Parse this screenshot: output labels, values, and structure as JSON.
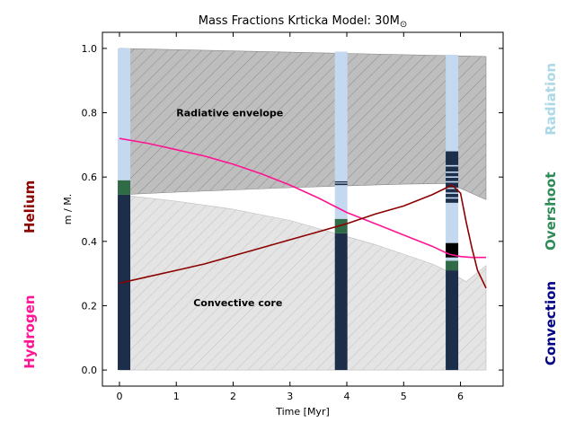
{
  "chart_data": {
    "type": "area",
    "title": "Mass Fractions Krticka Model: 30M",
    "title_symbol": "⊙",
    "xlabel": "Time [Myr]",
    "ylabel": "m / M.",
    "xlim": [
      -0.3,
      6.75
    ],
    "ylim": [
      -0.05,
      1.05
    ],
    "xticks": [
      0,
      1,
      2,
      3,
      4,
      5,
      6
    ],
    "yticks": [
      0.0,
      0.2,
      0.4,
      0.6,
      0.8,
      1.0
    ],
    "grid": false,
    "annotations": [
      {
        "text": "Radiative envelope",
        "x": 1.0,
        "y": 0.8
      },
      {
        "text": "Convective core",
        "x": 1.3,
        "y": 0.21
      }
    ],
    "legend_labels": {
      "left": [
        {
          "text": "Helium",
          "color": "#8b0000",
          "y_frac": 0.48
        },
        {
          "text": "Hydrogen",
          "color": "#ff1493",
          "y_frac": 0.77
        }
      ],
      "right": [
        {
          "text": "Radiation",
          "color": "#add8e6",
          "y_frac": 0.23
        },
        {
          "text": "Overshoot",
          "color": "#2e8b57",
          "y_frac": 0.49
        },
        {
          "text": "Convection",
          "color": "#000080",
          "y_frac": 0.75
        }
      ]
    },
    "regions": {
      "radiative_envelope_top": {
        "x": [
          0.0,
          6.45
        ],
        "y": [
          1.0,
          0.975
        ]
      },
      "radiative_envelope_bottom": {
        "x": [
          0.0,
          1.0,
          2.0,
          3.0,
          4.0,
          5.0,
          5.8,
          6.45
        ],
        "y": [
          0.545,
          0.553,
          0.56,
          0.567,
          0.573,
          0.578,
          0.58,
          0.53
        ]
      },
      "convective_core_top": {
        "x": [
          0.0,
          1.0,
          2.0,
          3.0,
          3.5,
          4.0,
          4.5,
          5.0,
          5.5,
          5.8,
          6.1,
          6.45
        ],
        "y": [
          0.545,
          0.525,
          0.5,
          0.465,
          0.44,
          0.415,
          0.39,
          0.36,
          0.33,
          0.305,
          0.275,
          0.325
        ]
      },
      "convective_core_bottom": {
        "x": [
          0.0,
          6.45
        ],
        "y": [
          0.0,
          0.0
        ]
      }
    },
    "series": [
      {
        "name": "Hydrogen",
        "color": "#ff1493",
        "x": [
          0.0,
          0.5,
          1.0,
          1.5,
          2.0,
          2.5,
          3.0,
          3.5,
          4.0,
          4.5,
          5.0,
          5.5,
          5.8,
          6.0,
          6.2,
          6.45
        ],
        "y": [
          0.72,
          0.705,
          0.685,
          0.665,
          0.64,
          0.61,
          0.575,
          0.535,
          0.49,
          0.455,
          0.42,
          0.385,
          0.36,
          0.353,
          0.35,
          0.35
        ]
      },
      {
        "name": "Helium",
        "color": "#8b0000",
        "x": [
          0.0,
          0.5,
          1.0,
          1.5,
          2.0,
          2.5,
          3.0,
          3.5,
          4.0,
          4.5,
          5.0,
          5.5,
          5.85,
          6.0,
          6.1,
          6.2,
          6.3,
          6.45
        ],
        "y": [
          0.27,
          0.29,
          0.31,
          0.33,
          0.355,
          0.38,
          0.405,
          0.43,
          0.455,
          0.485,
          0.51,
          0.545,
          0.575,
          0.55,
          0.46,
          0.38,
          0.31,
          0.255
        ]
      }
    ],
    "profiles": [
      {
        "time": 0.08,
        "segments": [
          {
            "from": 0.0,
            "to": 0.545,
            "kind": "convection",
            "color": "#1c2e4a"
          },
          {
            "from": 0.545,
            "to": 0.59,
            "kind": "overshoot",
            "color": "#2e6b46"
          },
          {
            "from": 0.59,
            "to": 1.0,
            "kind": "radiation",
            "color": "#c4d8f0"
          }
        ]
      },
      {
        "time": 3.9,
        "segments": [
          {
            "from": 0.0,
            "to": 0.425,
            "kind": "convection",
            "color": "#1c2e4a"
          },
          {
            "from": 0.425,
            "to": 0.47,
            "kind": "overshoot",
            "color": "#2e6b46"
          },
          {
            "from": 0.47,
            "to": 0.575,
            "kind": "radiation",
            "color": "#c4d8f0"
          },
          {
            "from": 0.575,
            "to": 0.58,
            "kind": "convection",
            "color": "#1c2e4a"
          },
          {
            "from": 0.58,
            "to": 0.583,
            "kind": "radiation",
            "color": "#c4d8f0"
          },
          {
            "from": 0.583,
            "to": 0.587,
            "kind": "convection",
            "color": "#1c2e4a"
          },
          {
            "from": 0.587,
            "to": 0.99,
            "kind": "radiation",
            "color": "#c4d8f0"
          }
        ]
      },
      {
        "time": 5.85,
        "segments": [
          {
            "from": 0.0,
            "to": 0.31,
            "kind": "convection",
            "color": "#1c2e4a"
          },
          {
            "from": 0.31,
            "to": 0.34,
            "kind": "overshoot",
            "color": "#2e6b46"
          },
          {
            "from": 0.34,
            "to": 0.35,
            "kind": "radiation",
            "color": "#c4d8f0"
          },
          {
            "from": 0.35,
            "to": 0.395,
            "kind": "mixed",
            "color": "#000000"
          },
          {
            "from": 0.395,
            "to": 0.52,
            "kind": "radiation",
            "color": "#c4d8f0"
          },
          {
            "from": 0.52,
            "to": 0.68,
            "kind": "convection",
            "color": "#1c2e4a"
          },
          {
            "from": 0.68,
            "to": 0.98,
            "kind": "radiation",
            "color": "#c4d8f0"
          }
        ],
        "stripes": [
          0.535,
          0.55,
          0.565,
          0.585,
          0.6,
          0.615,
          0.635
        ]
      }
    ]
  },
  "colors": {
    "envelope_fill": "#bebebe",
    "core_fill": "#e4e4e4",
    "hatch": "#9a9a9a",
    "stripe": "#c4d8f0"
  }
}
